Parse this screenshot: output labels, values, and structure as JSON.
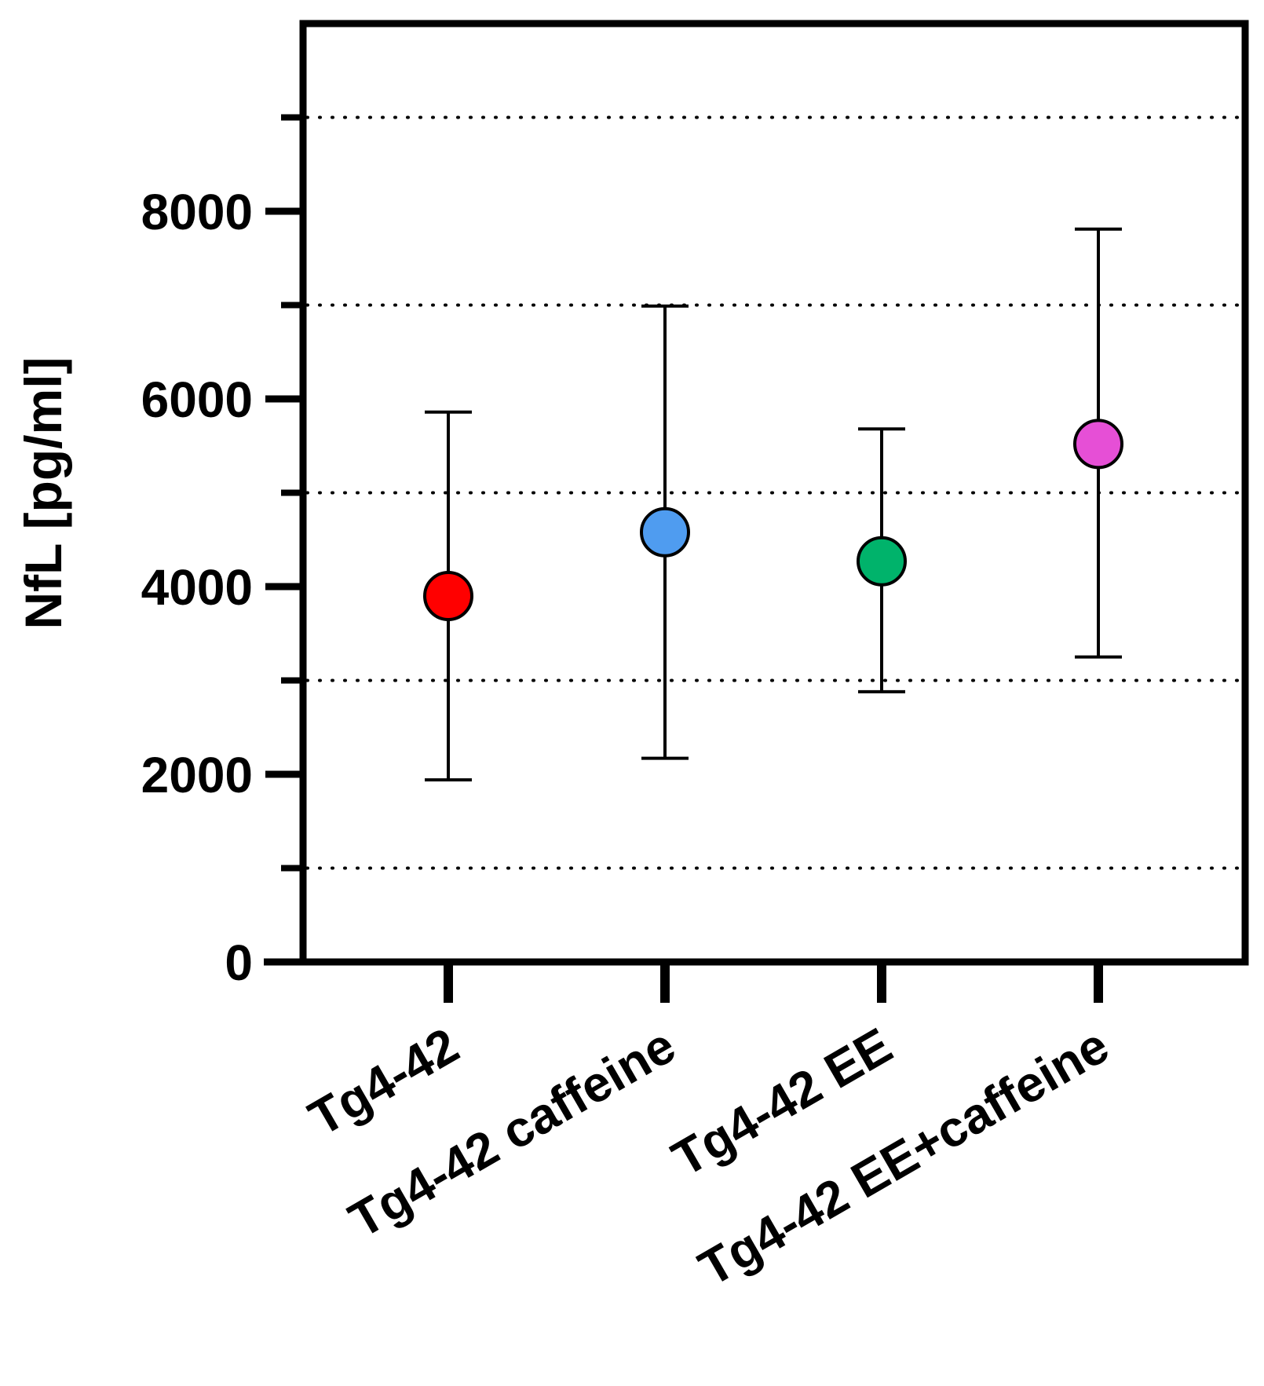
{
  "chart_data": {
    "type": "scatter",
    "title": "",
    "xlabel": "",
    "ylabel": "NfL [pg/ml]",
    "ylim": [
      0,
      10000
    ],
    "y_major_ticks": [
      0,
      2000,
      4000,
      6000,
      8000
    ],
    "y_minor_ticks": [
      1000,
      3000,
      5000,
      7000,
      9000
    ],
    "grid": "dotted horizontal lines at minor ticks",
    "legend": "none",
    "categories": [
      "Tg4-42",
      "Tg4-42 caffeine",
      "Tg4-42 EE",
      "Tg4-42 EE+caffeine"
    ],
    "values": [
      3900,
      4580,
      4270,
      5520
    ],
    "error_low": [
      1940,
      2170,
      2880,
      3250
    ],
    "error_high": [
      5860,
      6990,
      5680,
      7810
    ],
    "colors": [
      "#ff0000",
      "#4f9cf0",
      "#00b36b",
      "#e64fd6"
    ]
  }
}
